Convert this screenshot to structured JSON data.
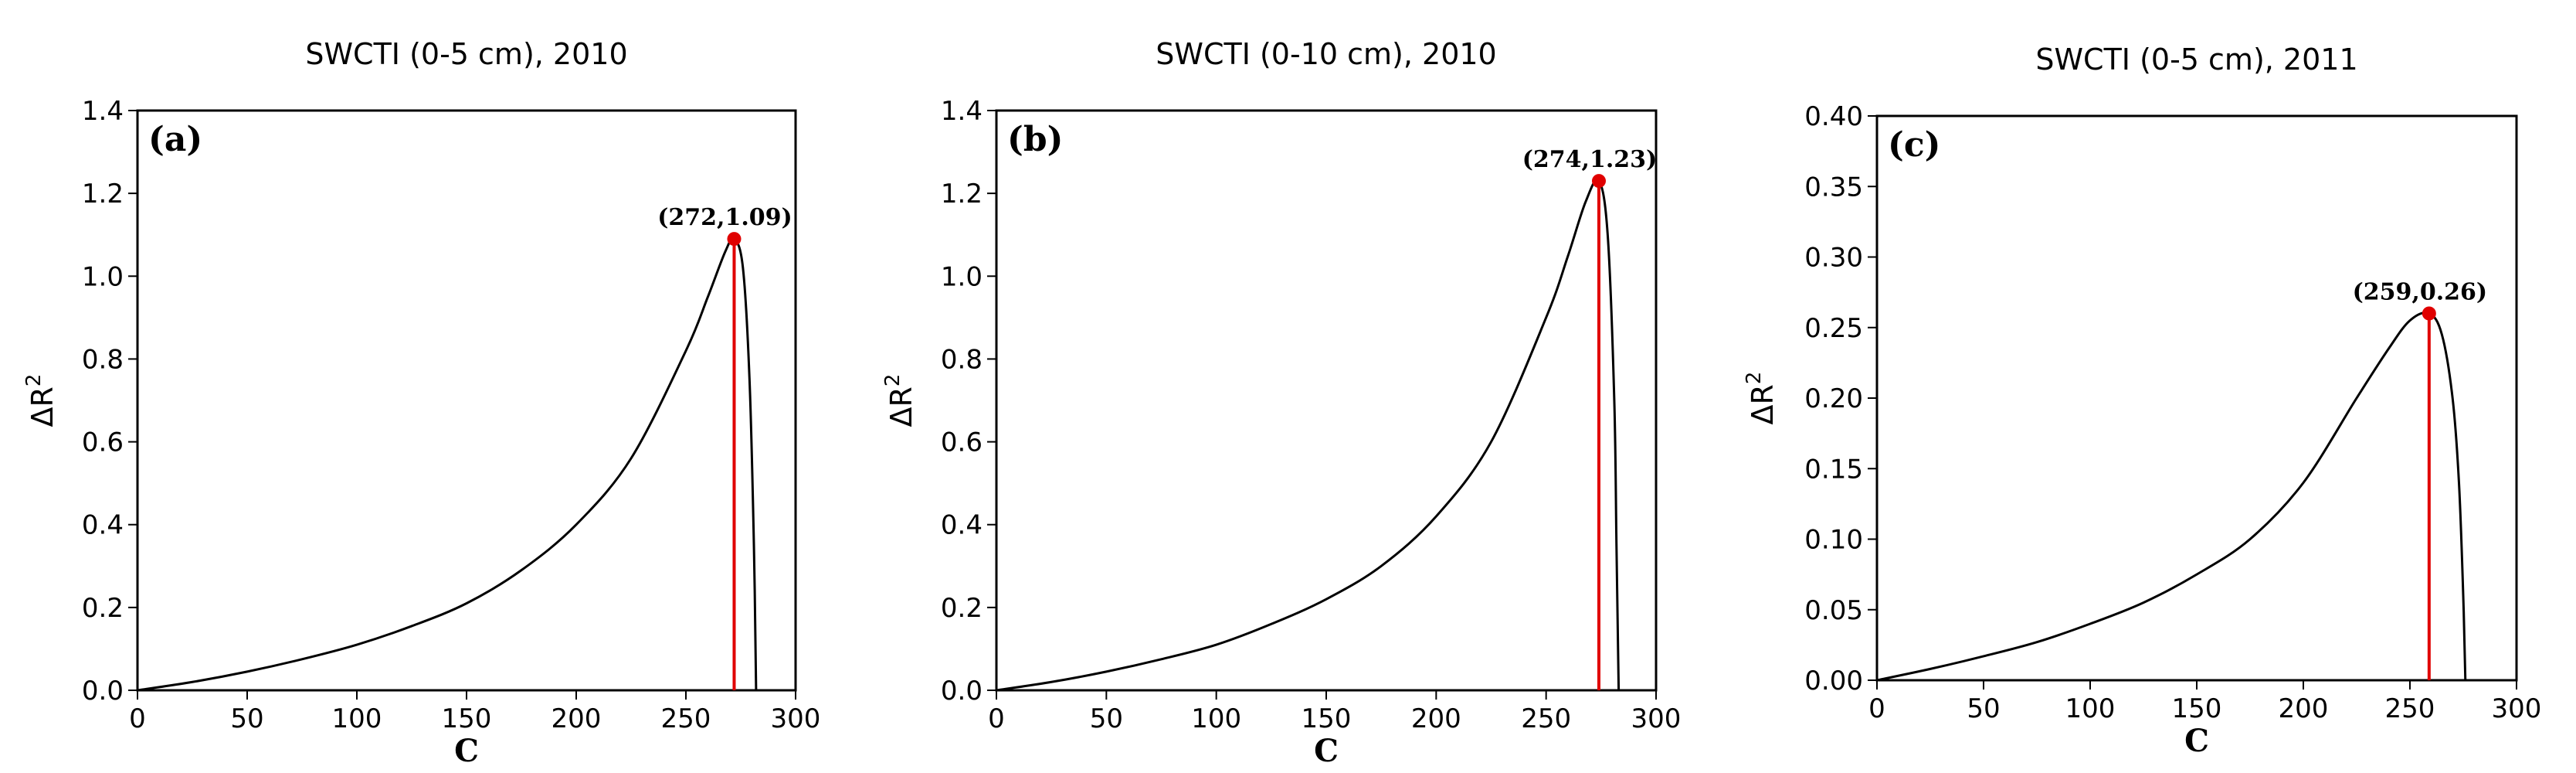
{
  "chart_data": [
    {
      "type": "line",
      "panel_label": "(a)",
      "title": "SWCTI (0-5 cm), 2010",
      "xlabel": "C",
      "ylabel_base": "ΔR",
      "ylabel_sup": "2",
      "xlim": [
        0,
        300
      ],
      "ylim": [
        0,
        1.4
      ],
      "xticks": [
        0,
        50,
        100,
        150,
        200,
        250,
        300
      ],
      "xtick_labels": [
        "0",
        "50",
        "100",
        "150",
        "200",
        "250",
        "300"
      ],
      "yticks": [
        0,
        0.2,
        0.4,
        0.6,
        0.8,
        1.0,
        1.2,
        1.4
      ],
      "ytick_labels": [
        "0.0",
        "0.2",
        "0.4",
        "0.6",
        "0.8",
        "1.0",
        "1.2",
        "1.4"
      ],
      "peak": {
        "x": 272,
        "y": 1.09
      },
      "peak_label": "(272,1.09)",
      "x_end": 282,
      "series": [
        {
          "name": "ΔR²",
          "x": [
            0,
            25,
            50,
            75,
            100,
            125,
            150,
            175,
            200,
            225,
            250,
            260,
            268,
            272,
            276,
            279,
            281,
            282
          ],
          "values": [
            0,
            0.02,
            0.045,
            0.075,
            0.11,
            0.155,
            0.21,
            0.29,
            0.4,
            0.56,
            0.82,
            0.95,
            1.06,
            1.09,
            1.02,
            0.75,
            0.35,
            0
          ]
        }
      ]
    },
    {
      "type": "line",
      "panel_label": "(b)",
      "title": "SWCTI (0-10 cm), 2010",
      "xlabel": "C",
      "ylabel_base": "ΔR",
      "ylabel_sup": "2",
      "xlim": [
        0,
        300
      ],
      "ylim": [
        0,
        1.4
      ],
      "xticks": [
        0,
        50,
        100,
        150,
        200,
        250,
        300
      ],
      "xtick_labels": [
        "0",
        "50",
        "100",
        "150",
        "200",
        "250",
        "300"
      ],
      "yticks": [
        0,
        0.2,
        0.4,
        0.6,
        0.8,
        1.0,
        1.2,
        1.4
      ],
      "ytick_labels": [
        "0.0",
        "0.2",
        "0.4",
        "0.6",
        "0.8",
        "1.0",
        "1.2",
        "1.4"
      ],
      "peak": {
        "x": 274,
        "y": 1.23
      },
      "peak_label": "(274,1.23)",
      "x_end": 283,
      "series": [
        {
          "name": "ΔR²",
          "x": [
            0,
            25,
            50,
            75,
            100,
            125,
            150,
            175,
            200,
            225,
            250,
            260,
            268,
            274,
            278,
            281,
            282,
            283
          ],
          "values": [
            0,
            0.02,
            0.045,
            0.075,
            0.11,
            0.16,
            0.22,
            0.3,
            0.42,
            0.6,
            0.9,
            1.05,
            1.18,
            1.23,
            1.1,
            0.7,
            0.35,
            0
          ]
        }
      ]
    },
    {
      "type": "line",
      "panel_label": "(c)",
      "title": "SWCTI (0-5 cm), 2011",
      "xlabel": "C",
      "ylabel_base": "ΔR",
      "ylabel_sup": "2",
      "xlim": [
        0,
        300
      ],
      "ylim": [
        0,
        0.4
      ],
      "xticks": [
        0,
        50,
        100,
        150,
        200,
        250,
        300
      ],
      "xtick_labels": [
        "0",
        "50",
        "100",
        "150",
        "200",
        "250",
        "300"
      ],
      "yticks": [
        0,
        0.05,
        0.1,
        0.15,
        0.2,
        0.25,
        0.3,
        0.35,
        0.4
      ],
      "ytick_labels": [
        "0.00",
        "0.05",
        "0.10",
        "0.15",
        "0.20",
        "0.25",
        "0.30",
        "0.35",
        "0.40"
      ],
      "peak": {
        "x": 259,
        "y": 0.26
      },
      "peak_label": "(259,0.26)",
      "x_end": 276,
      "series": [
        {
          "name": "ΔR²",
          "x": [
            0,
            25,
            50,
            75,
            100,
            125,
            150,
            175,
            200,
            225,
            240,
            250,
            259,
            265,
            270,
            273,
            275,
            276
          ],
          "values": [
            0,
            0.008,
            0.017,
            0.027,
            0.04,
            0.055,
            0.075,
            0.1,
            0.14,
            0.2,
            0.235,
            0.255,
            0.26,
            0.245,
            0.2,
            0.14,
            0.06,
            0
          ]
        }
      ]
    }
  ]
}
